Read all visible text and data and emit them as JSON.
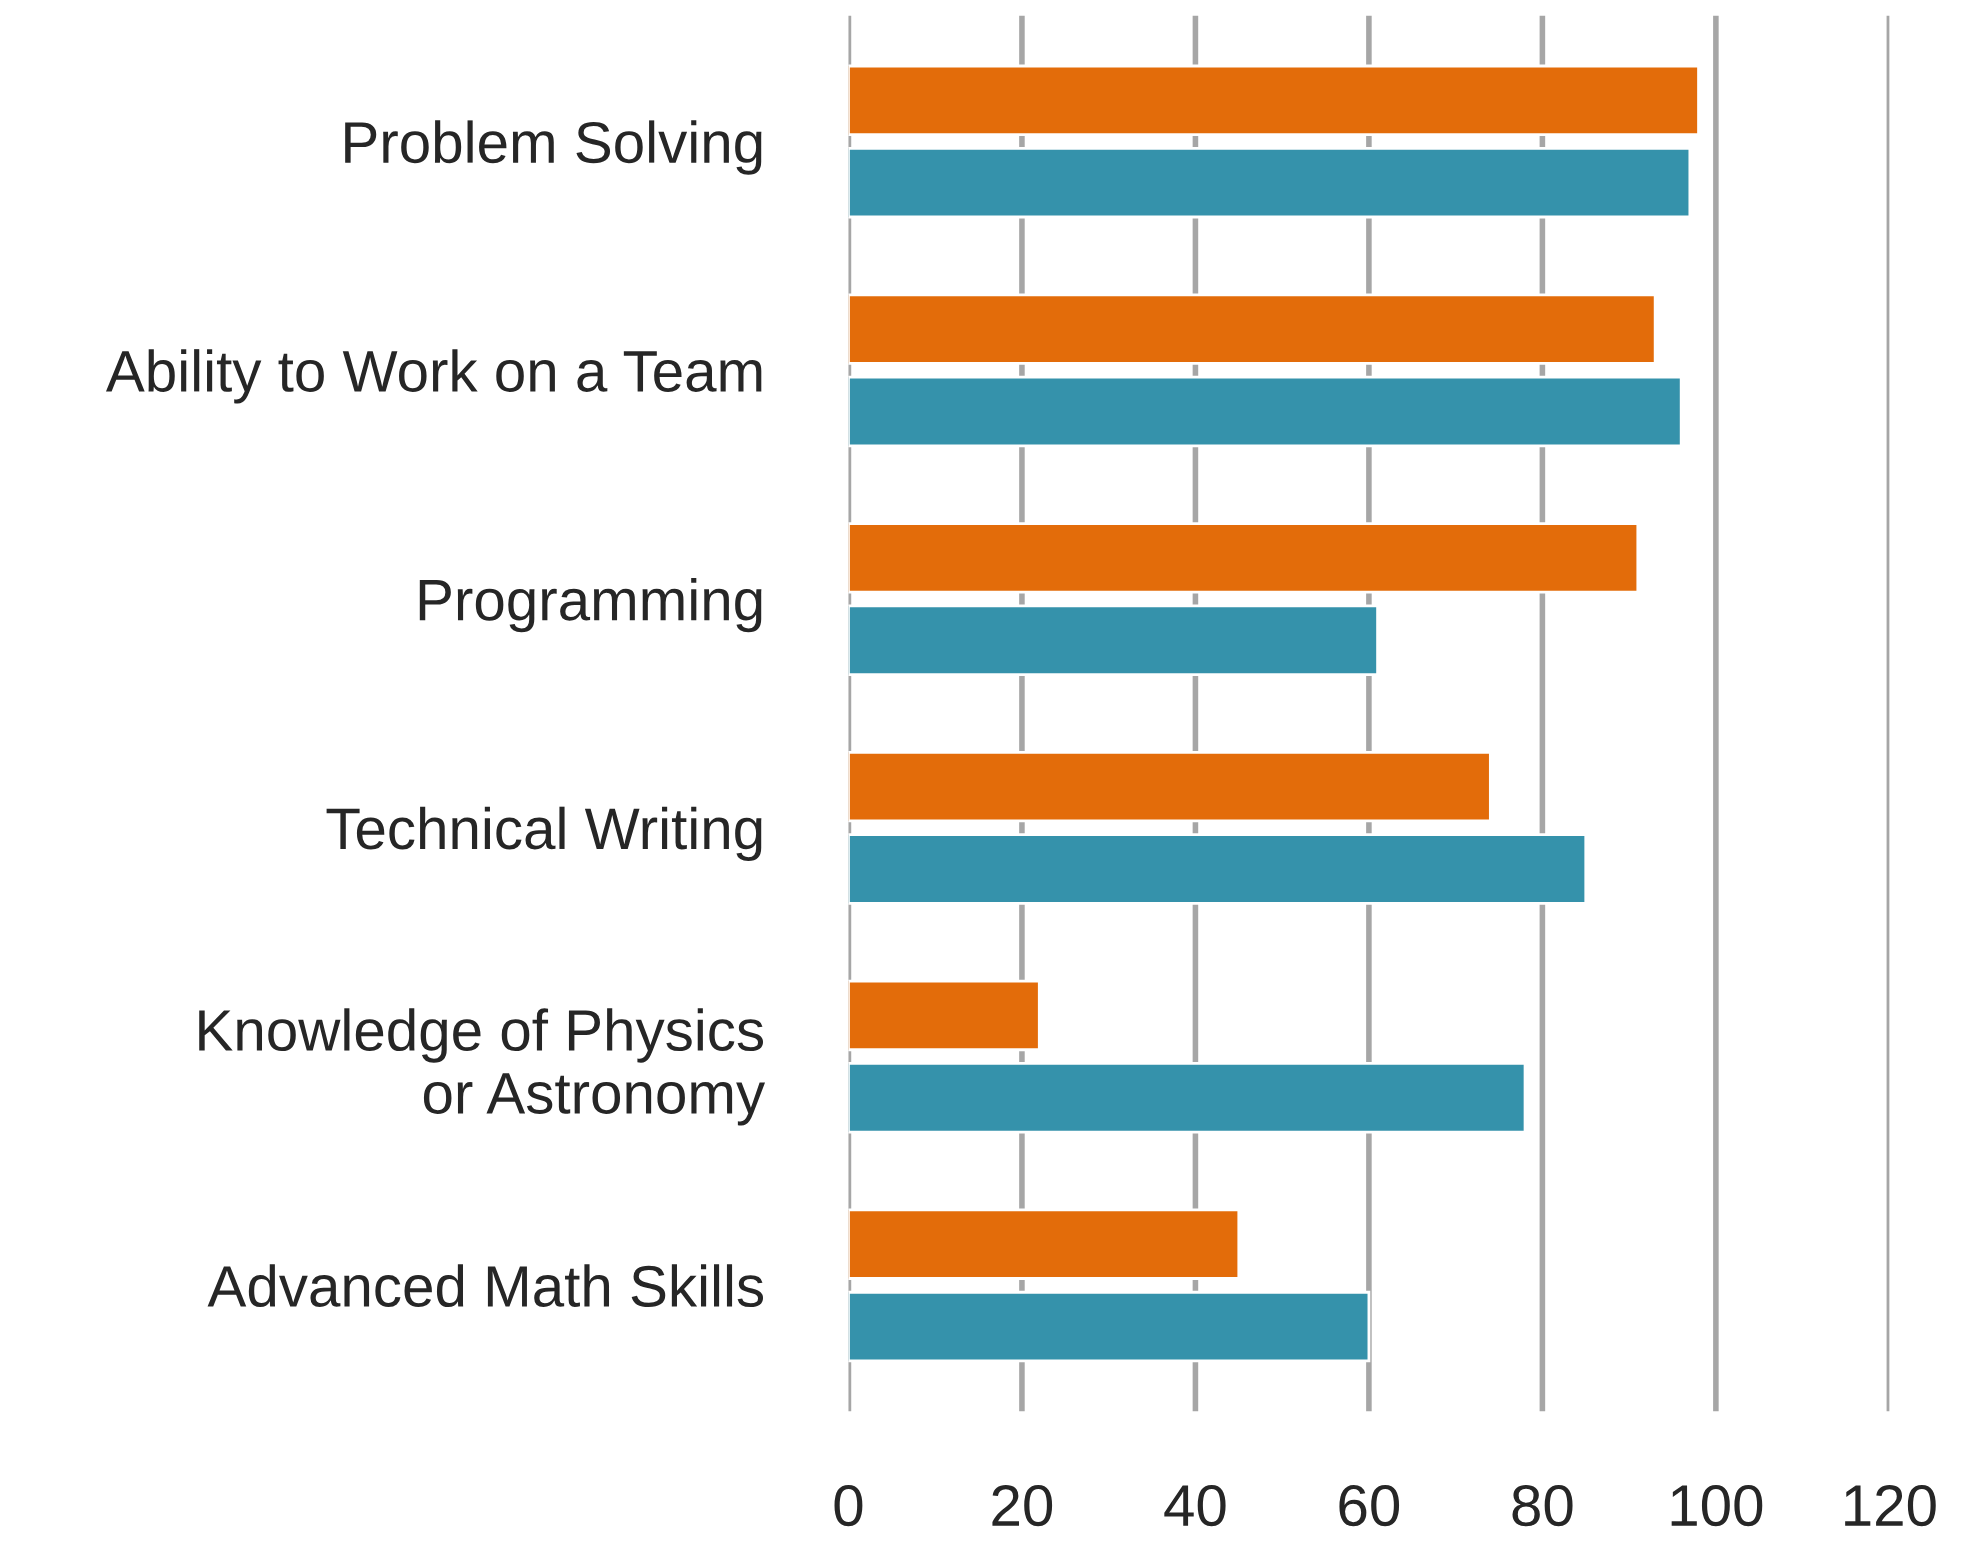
{
  "chart_data": {
    "type": "bar",
    "orientation": "horizontal",
    "categories": [
      "Problem Solving",
      "Ability to Work on a Team",
      "Programming",
      "Technical Writing",
      "Knowledge of Physics\nor Astronomy",
      "Advanced Math Skills"
    ],
    "series": [
      {
        "color": "#e36c0a",
        "values": [
          98,
          93,
          91,
          74,
          22,
          45
        ]
      },
      {
        "color": "#3592ab",
        "values": [
          97,
          96,
          61,
          85,
          78,
          60
        ]
      }
    ],
    "xlim": [
      0,
      120
    ],
    "xticks": [
      0,
      20,
      40,
      60,
      80,
      100,
      120
    ],
    "grid": "x"
  }
}
